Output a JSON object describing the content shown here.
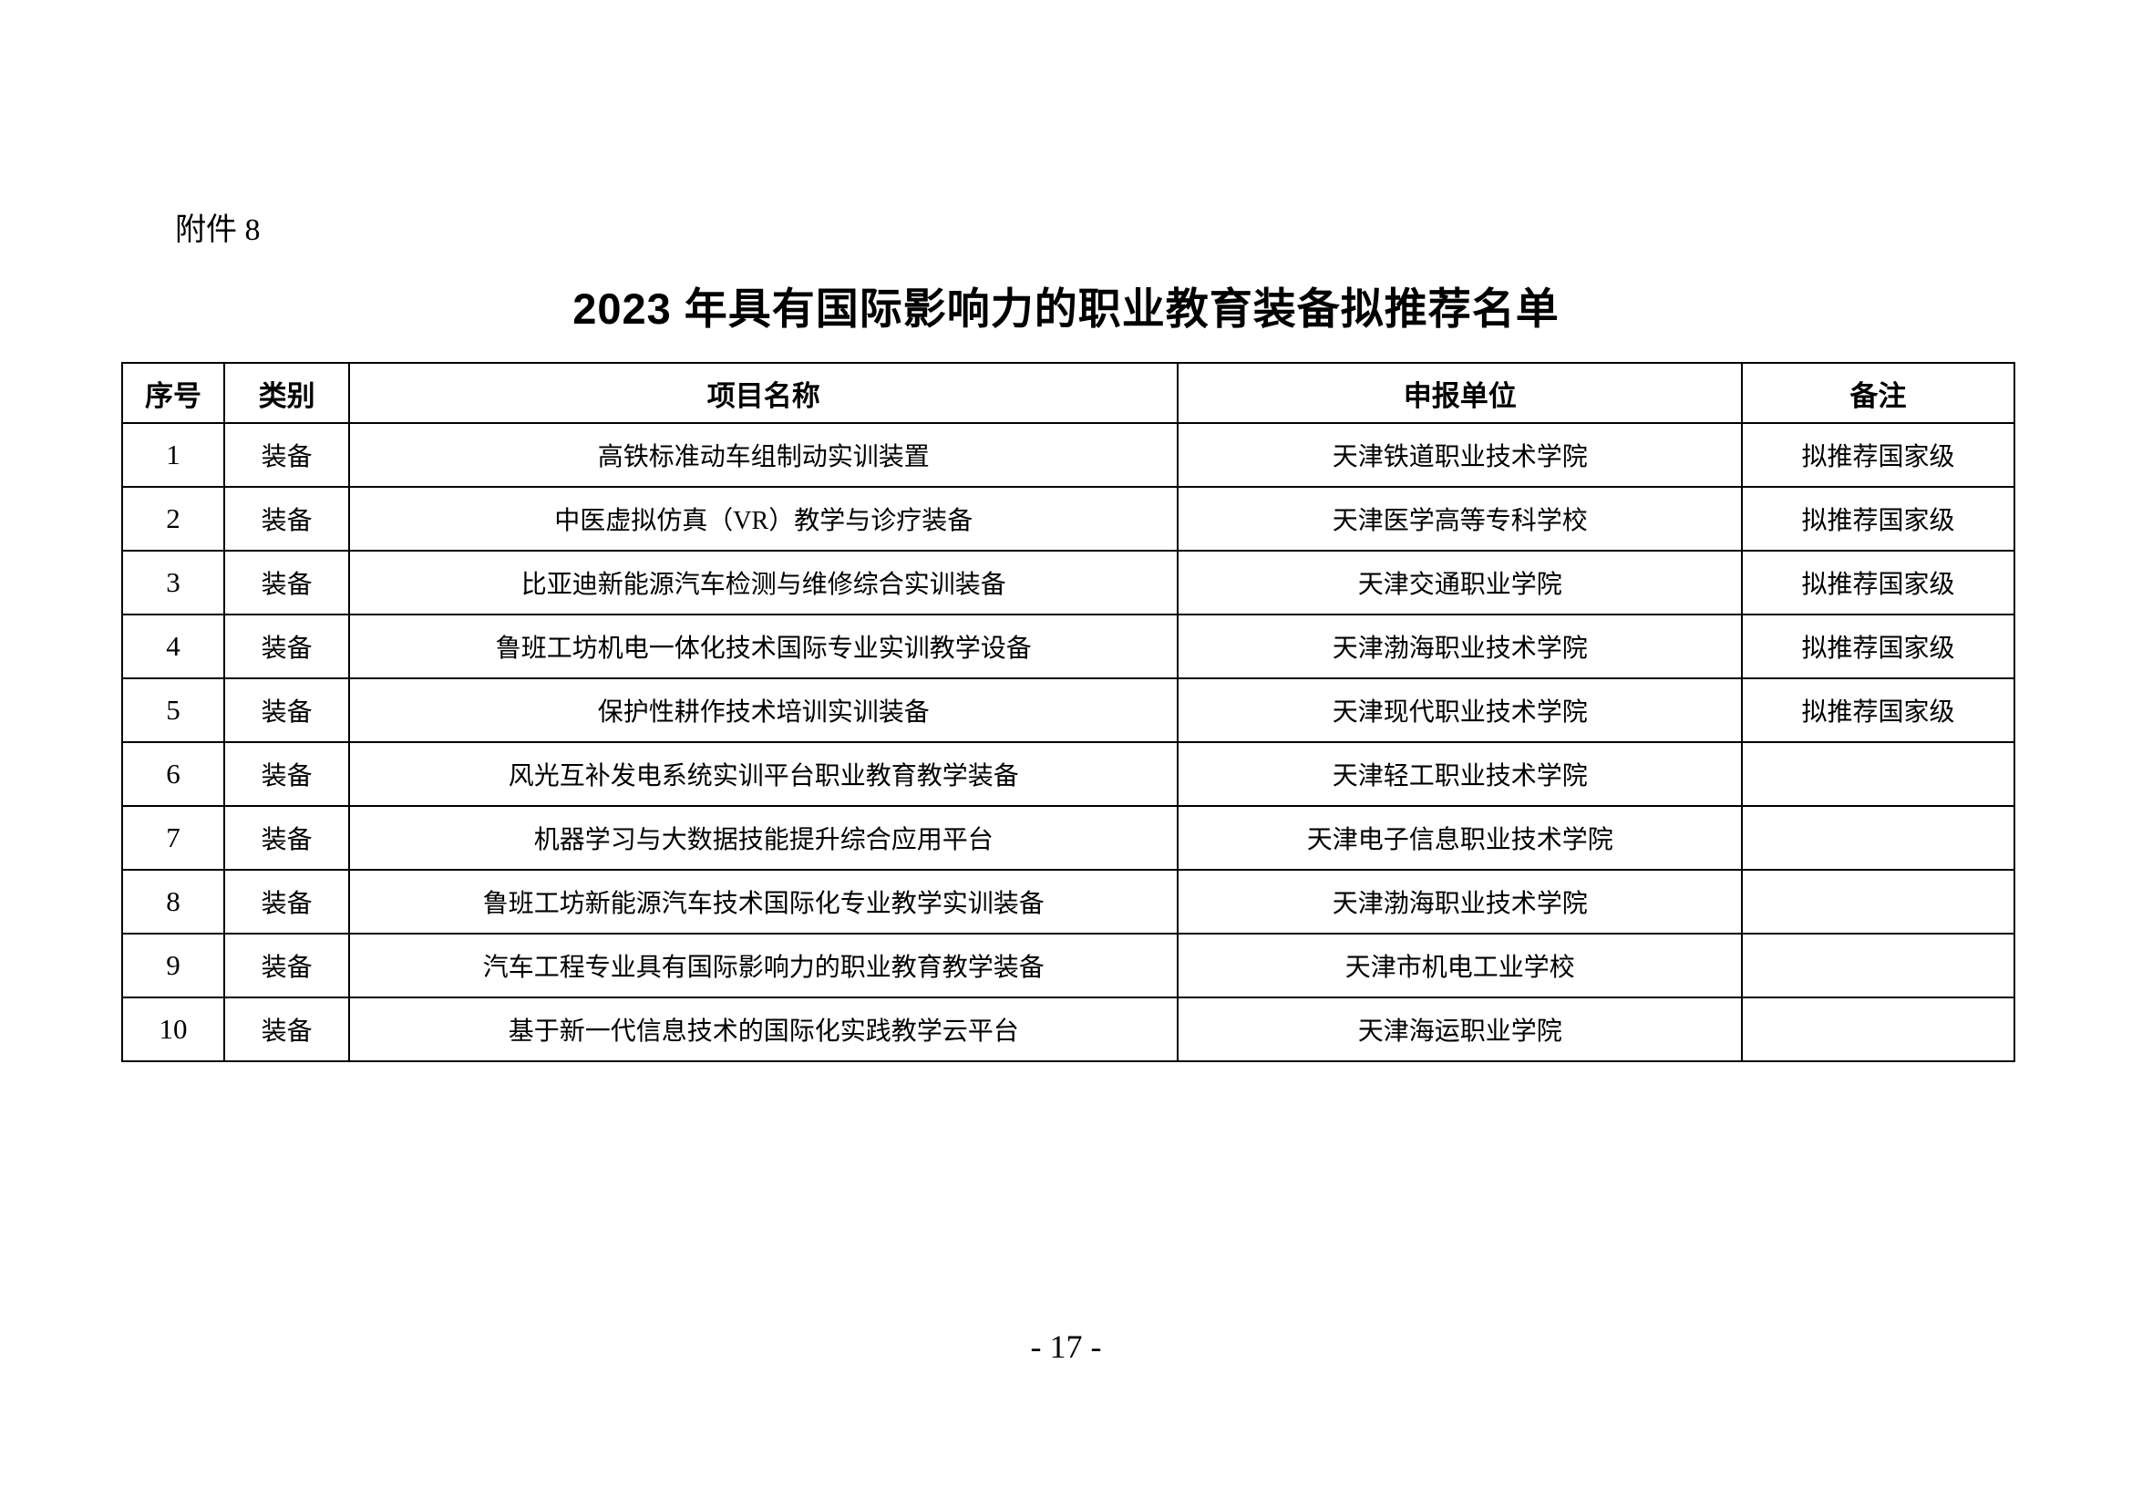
{
  "page": {
    "attachment_label": "附件 8",
    "title": "2023 年具有国际影响力的职业教育装备拟推荐名单",
    "page_number": "- 17 -"
  },
  "table": {
    "headers": [
      "序号",
      "类别",
      "项目名称",
      "申报单位",
      "备注"
    ],
    "col_widths_pct": [
      5.4,
      6.6,
      43.8,
      29.8,
      14.4
    ],
    "rows": [
      {
        "no": "1",
        "category": "装备",
        "project": "高铁标准动车组制动实训装置",
        "unit": "天津铁道职业技术学院",
        "remark": "拟推荐国家级"
      },
      {
        "no": "2",
        "category": "装备",
        "project": "中医虚拟仿真（VR）教学与诊疗装备",
        "unit": "天津医学高等专科学校",
        "remark": "拟推荐国家级"
      },
      {
        "no": "3",
        "category": "装备",
        "project": "比亚迪新能源汽车检测与维修综合实训装备",
        "unit": "天津交通职业学院",
        "remark": "拟推荐国家级"
      },
      {
        "no": "4",
        "category": "装备",
        "project": "鲁班工坊机电一体化技术国际专业实训教学设备",
        "unit": "天津渤海职业技术学院",
        "remark": "拟推荐国家级"
      },
      {
        "no": "5",
        "category": "装备",
        "project": "保护性耕作技术培训实训装备",
        "unit": "天津现代职业技术学院",
        "remark": "拟推荐国家级"
      },
      {
        "no": "6",
        "category": "装备",
        "project": "风光互补发电系统实训平台职业教育教学装备",
        "unit": "天津轻工职业技术学院",
        "remark": ""
      },
      {
        "no": "7",
        "category": "装备",
        "project": "机器学习与大数据技能提升综合应用平台",
        "unit": "天津电子信息职业技术学院",
        "remark": ""
      },
      {
        "no": "8",
        "category": "装备",
        "project": "鲁班工坊新能源汽车技术国际化专业教学实训装备",
        "unit": "天津渤海职业技术学院",
        "remark": ""
      },
      {
        "no": "9",
        "category": "装备",
        "project": "汽车工程专业具有国际影响力的职业教育教学装备",
        "unit": "天津市机电工业学校",
        "remark": ""
      },
      {
        "no": "10",
        "category": "装备",
        "project": "基于新一代信息技术的国际化实践教学云平台",
        "unit": "天津海运职业学院",
        "remark": ""
      }
    ]
  }
}
